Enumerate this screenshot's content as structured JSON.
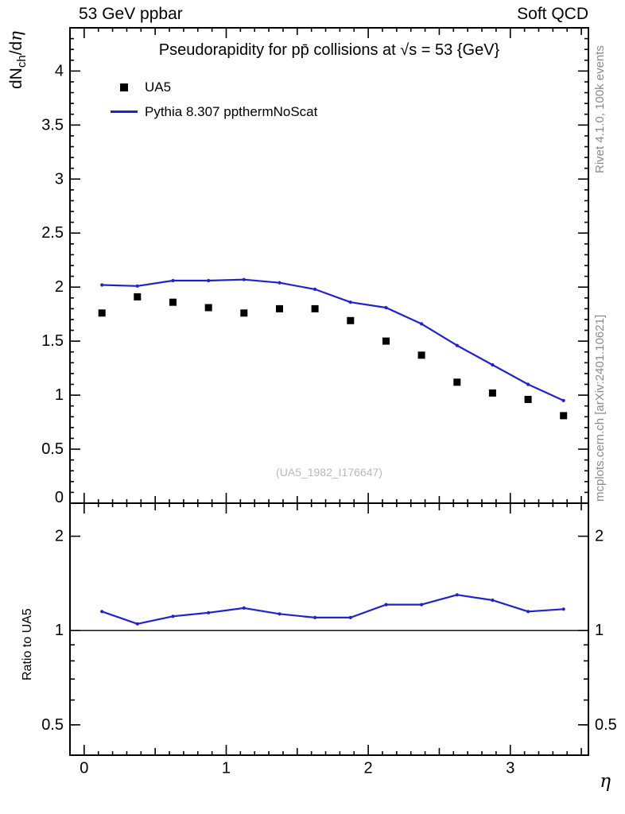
{
  "header": {
    "left_label": "53 GeV ppbar",
    "right_label": "Soft QCD"
  },
  "side_notes": {
    "rivet": "Rivet 4.1.0, 100k events",
    "mcplots": "mcplots.cern.ch [arXiv:2401.10621]"
  },
  "main_panel": {
    "title": "Pseudorapidity for pp̄ collisions at √s = 53 {GeV}",
    "ylabel": {
      "prefix": "dN",
      "subscript": "ch",
      "slash": "/d",
      "eta": "η"
    },
    "watermark": "(UA5_1982_I176647)",
    "legend": {
      "items": [
        {
          "label": "UA5",
          "marker": "black-square",
          "color": "#000000"
        },
        {
          "label": "Pythia 8.307 ppthermNoScat",
          "marker": "blue-line",
          "color": "#2222cc"
        }
      ]
    }
  },
  "ratio_panel": {
    "ylabel": "Ratio to UA5"
  },
  "x_axis": {
    "label": "η"
  },
  "colors": {
    "pythia_line": "#2222cc",
    "data_marker": "#000000",
    "side_note": "#8a8a8a",
    "watermark": "#b9b9b9"
  },
  "chart_data": [
    {
      "type": "scatter",
      "title": "Pseudorapidity for pp̄ collisions at √s = 53 {GeV}",
      "xlabel": "η",
      "ylabel": "dN_ch/dη",
      "xlim": [
        -0.1,
        3.55
      ],
      "ylim": [
        0,
        4.4
      ],
      "yscale": "linear",
      "grid": false,
      "legend_position": "top-left-inside",
      "x": [
        0.125,
        0.375,
        0.625,
        0.875,
        1.125,
        1.375,
        1.625,
        1.875,
        2.125,
        2.375,
        2.625,
        2.875,
        3.125,
        3.375
      ],
      "series": [
        {
          "name": "UA5",
          "style": "scatter-square",
          "color": "#000000",
          "values": [
            1.76,
            1.91,
            1.86,
            1.81,
            1.76,
            1.8,
            1.8,
            1.69,
            1.5,
            1.37,
            1.12,
            1.02,
            0.96,
            0.81
          ]
        },
        {
          "name": "Pythia 8.307 ppthermNoScat",
          "style": "line",
          "color": "#2222cc",
          "values": [
            2.02,
            2.01,
            2.06,
            2.06,
            2.07,
            2.04,
            1.98,
            1.86,
            1.81,
            1.66,
            1.46,
            1.28,
            1.1,
            0.95
          ]
        }
      ],
      "xticks_labeled": [
        0,
        1,
        2,
        3
      ],
      "yticks_labeled": [
        0,
        0.5,
        1,
        1.5,
        2,
        2.5,
        3,
        3.5,
        4
      ]
    },
    {
      "type": "line",
      "title": "",
      "xlabel": "η",
      "ylabel": "Ratio to UA5",
      "xlim": [
        -0.1,
        3.55
      ],
      "ylim": [
        0.4,
        2.55
      ],
      "yscale": "log",
      "grid": false,
      "x": [
        0.125,
        0.375,
        0.625,
        0.875,
        1.125,
        1.375,
        1.625,
        1.875,
        2.125,
        2.375,
        2.625,
        2.875,
        3.125,
        3.375
      ],
      "series": [
        {
          "name": "Pythia 8.307 ppthermNoScat / UA5",
          "style": "line",
          "color": "#2222cc",
          "values": [
            1.15,
            1.05,
            1.11,
            1.14,
            1.18,
            1.13,
            1.1,
            1.1,
            1.21,
            1.21,
            1.3,
            1.25,
            1.15,
            1.17
          ]
        }
      ],
      "xticks_labeled": [
        0,
        1,
        2,
        3
      ],
      "yticks_labeled": [
        0.5,
        1,
        2
      ],
      "yticks_minor": [
        0.5,
        0.6,
        0.7,
        0.8,
        0.9
      ],
      "refline_y": 1
    }
  ]
}
